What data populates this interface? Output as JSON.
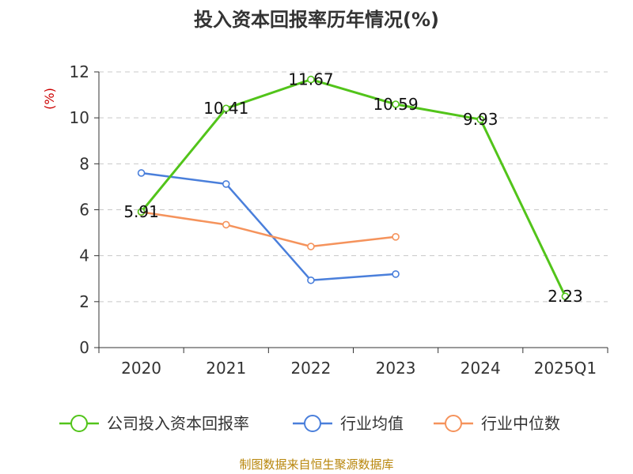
{
  "chart_data": {
    "type": "line",
    "title": "投入资本回报率历年情况(%)",
    "ylabel": "(%)",
    "categories": [
      "2020",
      "2021",
      "2022",
      "2023",
      "2024",
      "2025Q1"
    ],
    "ylim": [
      0,
      12
    ],
    "yticks": [
      0,
      2,
      4,
      6,
      8,
      10,
      12
    ],
    "grid": true,
    "legend_position": "bottom",
    "series": [
      {
        "name": "公司投入资本回报率",
        "color": "#52c41a",
        "values": [
          5.91,
          10.41,
          11.67,
          10.59,
          9.93,
          2.23
        ],
        "labels": [
          "5.91",
          "10.41",
          "11.67",
          "10.59",
          "9.93",
          "2.23"
        ]
      },
      {
        "name": "行业均值",
        "color": "#4a7fdb",
        "values": [
          7.6,
          7.12,
          2.93,
          3.2,
          null,
          null
        ]
      },
      {
        "name": "行业中位数",
        "color": "#f5935c",
        "values": [
          5.9,
          5.35,
          4.4,
          4.82,
          null,
          null
        ]
      }
    ],
    "source": "制图数据来自恒生聚源数据库"
  }
}
